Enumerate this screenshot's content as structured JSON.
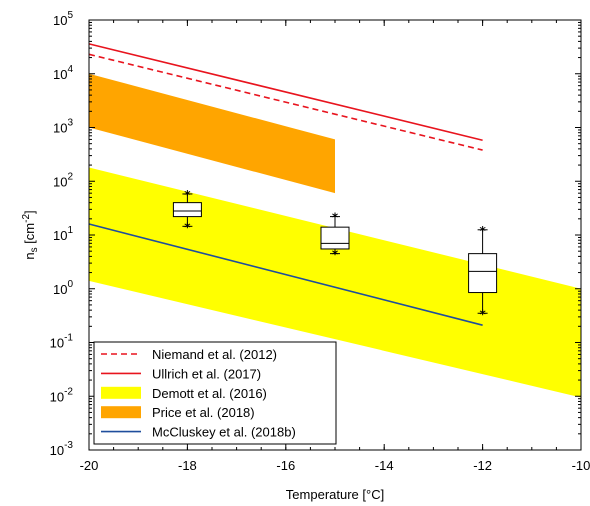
{
  "chart_data": {
    "type": "line",
    "xlabel": "Temperature [°C]",
    "ylabel_main": "n",
    "ylabel_sub": "s",
    "ylabel_unit_open": " [cm",
    "ylabel_unit_exp": "-2",
    "ylabel_unit_close": "]",
    "xlim": [
      -20,
      -10
    ],
    "ylim_log10": [
      -3,
      5
    ],
    "y_scale": "log",
    "grid": false,
    "legend_position": "bottom-left",
    "xticks": [
      {
        "value": -20,
        "label": "-20"
      },
      {
        "value": -18,
        "label": "-18"
      },
      {
        "value": -16,
        "label": "-16"
      },
      {
        "value": -14,
        "label": "-14"
      },
      {
        "value": -12,
        "label": "-12"
      },
      {
        "value": -10,
        "label": "-10"
      }
    ],
    "yticks": [
      {
        "exp": -3,
        "base": "10",
        "sup": "-3"
      },
      {
        "exp": -2,
        "base": "10",
        "sup": "-2"
      },
      {
        "exp": -1,
        "base": "10",
        "sup": "-1"
      },
      {
        "exp": 0,
        "base": "10",
        "sup": "0"
      },
      {
        "exp": 1,
        "base": "10",
        "sup": "1"
      },
      {
        "exp": 2,
        "base": "10",
        "sup": "2"
      },
      {
        "exp": 3,
        "base": "10",
        "sup": "3"
      },
      {
        "exp": 4,
        "base": "10",
        "sup": "4"
      },
      {
        "exp": 5,
        "base": "10",
        "sup": "5"
      }
    ],
    "series": [
      {
        "name": "Niemand et al. (2012)",
        "kind": "line",
        "style": "dashed",
        "color": "#e8141e",
        "points": [
          {
            "x": -20,
            "y": 23000
          },
          {
            "x": -12,
            "y": 380
          }
        ]
      },
      {
        "name": "Ullrich et al. (2017)",
        "kind": "line",
        "style": "solid",
        "color": "#e8141e",
        "points": [
          {
            "x": -20,
            "y": 36000
          },
          {
            "x": -12,
            "y": 580
          }
        ]
      },
      {
        "name": "Demott et al. (2016)",
        "kind": "band",
        "color": "#ffff00",
        "x": [
          -20,
          -10
        ],
        "upper": [
          180,
          1.0
        ],
        "lower": [
          1.4,
          0.0095
        ]
      },
      {
        "name": "Price et al. (2018)",
        "kind": "band",
        "color": "#ffa500",
        "x": [
          -20,
          -15
        ],
        "upper": [
          10000,
          600
        ],
        "lower": [
          1000,
          60
        ]
      },
      {
        "name": "McCluskey et al. (2018b)",
        "kind": "line",
        "style": "solid",
        "color": "#1f4e9c",
        "points": [
          {
            "x": -20,
            "y": 16
          },
          {
            "x": -12,
            "y": 0.21
          }
        ]
      }
    ],
    "boxplots": [
      {
        "x": -18,
        "min": 14.5,
        "q1": 22,
        "median": 28,
        "q3": 40,
        "max": 58,
        "outliers": [
          14.5,
          58
        ]
      },
      {
        "x": -15,
        "min": 4.5,
        "q1": 5.5,
        "median": 7,
        "q3": 14,
        "max": 22,
        "outliers": [
          4.5,
          22
        ]
      },
      {
        "x": -12,
        "min": 0.35,
        "q1": 0.85,
        "median": 2.1,
        "q3": 4.5,
        "max": 12.5,
        "outliers": [
          0.35,
          12.5
        ]
      }
    ]
  }
}
